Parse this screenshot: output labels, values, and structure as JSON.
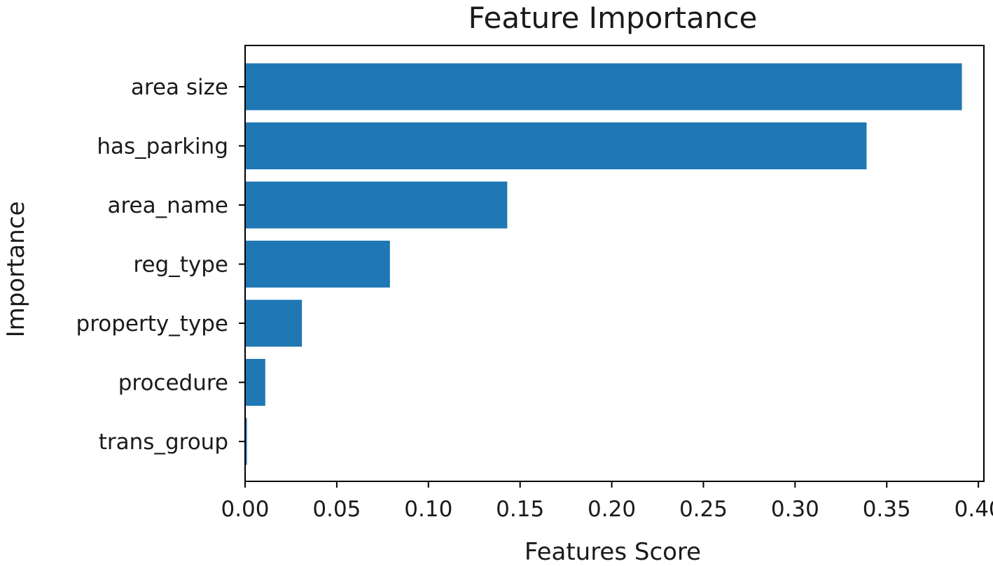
{
  "chart_data": {
    "type": "bar",
    "orientation": "horizontal",
    "title": "Feature Importance",
    "xlabel": "Features Score",
    "ylabel": "Importance",
    "categories": [
      "area size",
      "has_parking",
      "area_name",
      "reg_type",
      "property_type",
      "procedure",
      "trans_group"
    ],
    "values": [
      0.391,
      0.339,
      0.143,
      0.079,
      0.031,
      0.011,
      0.001
    ],
    "xlim": [
      0,
      0.403
    ],
    "xticks": [
      0.0,
      0.05,
      0.1,
      0.15,
      0.2,
      0.25,
      0.3,
      0.35,
      0.4
    ],
    "xtick_labels": [
      "0.00",
      "0.05",
      "0.10",
      "0.15",
      "0.20",
      "0.25",
      "0.30",
      "0.35",
      "0.40"
    ],
    "bar_color": "#1f77b4",
    "grid": false,
    "legend": false
  }
}
